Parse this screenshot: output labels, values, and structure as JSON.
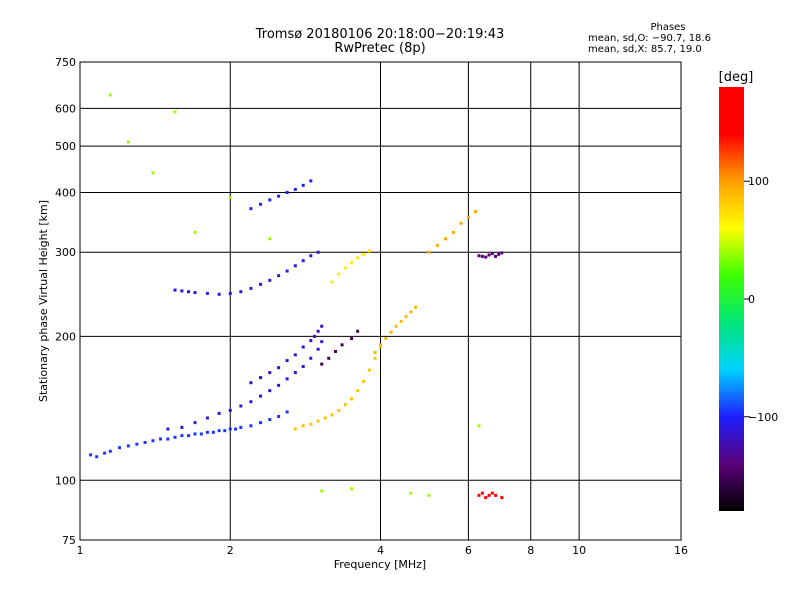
{
  "chart_data": {
    "type": "scatter",
    "title_line1": "Tromsø 20180106 20:18:00−20:19:43",
    "title_line2": "RwPretec (8p)",
    "xlabel": "Frequency [MHz]",
    "ylabel": "Stationary phase Virtual Height [km]",
    "x_scale": "log",
    "y_scale": "log",
    "xlim": [
      1,
      16
    ],
    "ylim": [
      75,
      750
    ],
    "x_ticks": [
      1,
      2,
      4,
      6,
      8,
      10,
      16
    ],
    "x_tick_labels": [
      "1",
      "2",
      "4",
      "6",
      "8",
      "10",
      "16"
    ],
    "y_ticks": [
      75,
      100,
      200,
      300,
      400,
      500,
      600,
      750
    ],
    "y_tick_labels": [
      "75",
      "100",
      "200",
      "300",
      "400",
      "500",
      "600",
      "750"
    ],
    "grid": true,
    "colorbar": {
      "label": "[deg]",
      "range": [
        -180,
        180
      ],
      "ticks": [
        100,
        0,
        -100
      ],
      "tick_labels": [
        "100",
        "0",
        "−100"
      ],
      "colors": [
        "#000000",
        "#5a0078",
        "#1e1eff",
        "#00d2ff",
        "#00e678",
        "#3cff00",
        "#ffff00",
        "#ffa000",
        "#ff0000",
        "#ff0000"
      ]
    },
    "phase_stats": {
      "heading": "Phases",
      "o_mode": "mean, sd,O: −90.7, 18.6",
      "x_mode": "mean, sd,X:  85.7, 19.0"
    },
    "series": [
      {
        "x": [
          1.05,
          1.08,
          1.12,
          1.15,
          1.2,
          1.25,
          1.3,
          1.35,
          1.4,
          1.45,
          1.5,
          1.55,
          1.6,
          1.65,
          1.7,
          1.75,
          1.8,
          1.85,
          1.9,
          1.95,
          2.0,
          2.05,
          2.1,
          2.2,
          2.3,
          2.4,
          2.5,
          2.6
        ],
        "y": [
          113,
          112,
          114,
          115,
          117,
          118,
          119,
          120,
          121,
          122,
          122,
          123,
          124,
          124,
          125,
          125,
          126,
          126,
          127,
          127,
          128,
          128,
          129,
          130,
          132,
          134,
          136,
          139
        ],
        "phase": -95
      },
      {
        "x": [
          1.5,
          1.6,
          1.7,
          1.8,
          1.9,
          2.0,
          2.1,
          2.2,
          2.3,
          2.4,
          2.5,
          2.6,
          2.7,
          2.8,
          2.9,
          3.0,
          3.05
        ],
        "y": [
          128,
          129,
          132,
          135,
          138,
          140,
          143,
          146,
          150,
          154,
          158,
          163,
          168,
          173,
          180,
          188,
          195
        ],
        "phase": -112
      },
      {
        "x": [
          2.2,
          2.3,
          2.4,
          2.5,
          2.6,
          2.7,
          2.8,
          2.9,
          2.95,
          3.0,
          3.05
        ],
        "y": [
          160,
          164,
          168,
          172,
          178,
          183,
          190,
          196,
          200,
          205,
          210
        ],
        "phase": -120
      },
      {
        "x": [
          1.55,
          1.6,
          1.65,
          1.7,
          1.8,
          1.9,
          2.0,
          2.1,
          2.2,
          2.3,
          2.4,
          2.5,
          2.6,
          2.7,
          2.8,
          2.9,
          3.0
        ],
        "y": [
          250,
          249,
          248,
          247,
          246,
          245,
          246,
          248,
          252,
          257,
          262,
          268,
          274,
          281,
          288,
          295,
          300
        ],
        "phase": -108
      },
      {
        "x": [
          2.2,
          2.3,
          2.4,
          2.5,
          2.6,
          2.7,
          2.8,
          2.9
        ],
        "y": [
          370,
          378,
          386,
          393,
          400,
          406,
          414,
          423
        ],
        "phase": -100
      },
      {
        "x": [
          2.7,
          2.8,
          2.9,
          3.0,
          3.1,
          3.2,
          3.3,
          3.4,
          3.5,
          3.6,
          3.7,
          3.8,
          3.9,
          4.0
        ],
        "y": [
          128,
          130,
          131,
          133,
          135,
          137,
          140,
          144,
          148,
          154,
          161,
          170,
          180,
          190
        ],
        "phase": 85
      },
      {
        "x": [
          3.9,
          4.0,
          4.1,
          4.2,
          4.3,
          4.4,
          4.5,
          4.6,
          4.7
        ],
        "y": [
          185,
          192,
          198,
          204,
          210,
          215,
          220,
          225,
          230
        ],
        "phase": 90
      },
      {
        "x": [
          3.2,
          3.3,
          3.4,
          3.5,
          3.6,
          3.7,
          3.8
        ],
        "y": [
          260,
          270,
          278,
          285,
          292,
          297,
          302
        ],
        "phase": 70
      },
      {
        "x": [
          3.05,
          3.15,
          3.25,
          3.35,
          3.5,
          3.6
        ],
        "y": [
          175,
          180,
          186,
          192,
          198,
          205
        ],
        "phase": -150
      },
      {
        "x": [
          6.3,
          6.4,
          6.5,
          6.6,
          6.7,
          6.8,
          6.9,
          7.0
        ],
        "y": [
          295,
          294,
          293,
          296,
          298,
          294,
          297,
          299
        ],
        "phase": -140
      },
      {
        "x": [
          6.3,
          6.4,
          6.5,
          6.6,
          6.7,
          6.8,
          7.0
        ],
        "y": [
          93,
          94,
          92,
          93,
          94,
          93,
          92
        ],
        "phase": 140
      },
      {
        "x": [
          5.0,
          5.2,
          5.4,
          5.6,
          5.8,
          6.0,
          6.2
        ],
        "y": [
          300,
          310,
          320,
          330,
          345,
          355,
          365
        ],
        "phase": 95
      },
      {
        "x": [
          1.15,
          1.25,
          1.4,
          1.55,
          1.7,
          2.0,
          2.4,
          3.05,
          3.5,
          4.6,
          5.0,
          6.3
        ],
        "y": [
          640,
          510,
          440,
          590,
          330,
          390,
          320,
          95,
          96,
          94,
          93,
          130
        ],
        "phase": 40
      }
    ]
  }
}
